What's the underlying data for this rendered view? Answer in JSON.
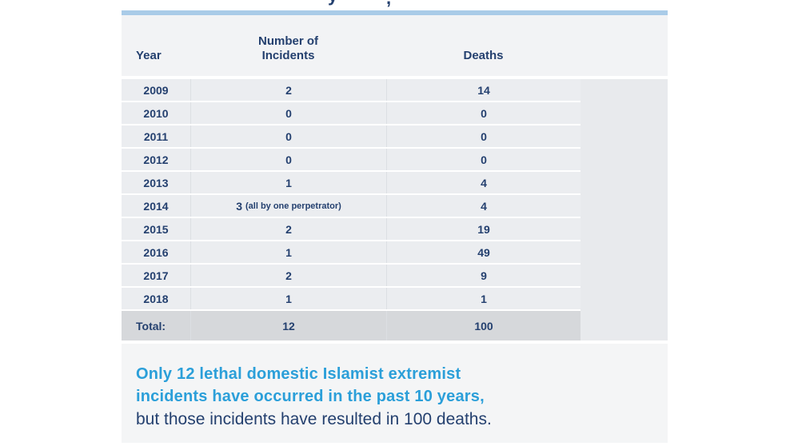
{
  "title_fragments": {
    "fragment1": "y",
    "fragment2": ","
  },
  "colors": {
    "accent_bar": "#a9cbe8",
    "navy_text": "#24406f",
    "highlight_blue": "#2b9fd9",
    "header_bg": "#f2f3f5",
    "row_bg": "#ebedf0",
    "total_row_bg": "#d6d8db",
    "empty_column_bg": "#e8eaed",
    "caption_bg": "#f4f5f6"
  },
  "chart_data": {
    "type": "table",
    "header": {
      "year": "Year",
      "incidents_line1": "Number of",
      "incidents_line2": "Incidents",
      "deaths": "Deaths"
    },
    "rows": [
      {
        "year": "2009",
        "incidents": "2",
        "note": "",
        "deaths": "14"
      },
      {
        "year": "2010",
        "incidents": "0",
        "note": "",
        "deaths": "0"
      },
      {
        "year": "2011",
        "incidents": "0",
        "note": "",
        "deaths": "0"
      },
      {
        "year": "2012",
        "incidents": "0",
        "note": "",
        "deaths": "0"
      },
      {
        "year": "2013",
        "incidents": "1",
        "note": "",
        "deaths": "4"
      },
      {
        "year": "2014",
        "incidents": "3",
        "note": "(all by one perpetrator)",
        "deaths": "4"
      },
      {
        "year": "2015",
        "incidents": "2",
        "note": "",
        "deaths": "19"
      },
      {
        "year": "2016",
        "incidents": "1",
        "note": "",
        "deaths": "49"
      },
      {
        "year": "2017",
        "incidents": "2",
        "note": "",
        "deaths": "9"
      },
      {
        "year": "2018",
        "incidents": "1",
        "note": "",
        "deaths": "1"
      }
    ],
    "total": {
      "label": "Total:",
      "incidents": "12",
      "deaths": "100"
    }
  },
  "caption": {
    "line1": "Only 12 lethal domestic Islamist extremist",
    "line2": "incidents have occurred in the past 10 years,",
    "line3": "but those incidents have resulted in 100 deaths."
  }
}
